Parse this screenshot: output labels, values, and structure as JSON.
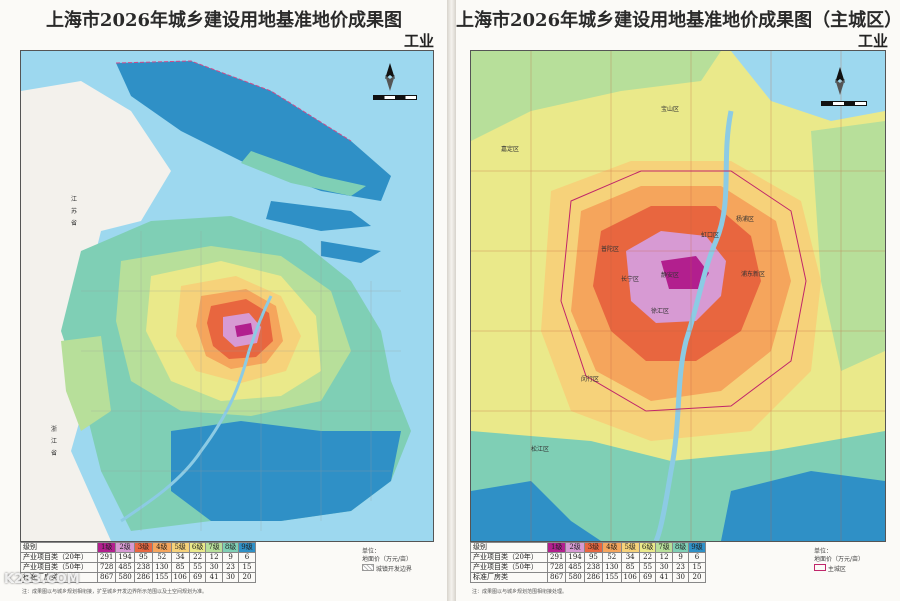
{
  "left": {
    "title": "上海市2026年城乡建设用地基准地价成果图",
    "subtitle": "工业",
    "levels": [
      "1级",
      "2级",
      "3级",
      "4级",
      "5级",
      "6级",
      "7级",
      "8级",
      "9级"
    ],
    "level_row_label": "级别",
    "rows": [
      {
        "label": "产业项目类（20年）",
        "values": [
          "291",
          "194",
          "95",
          "52",
          "34",
          "22",
          "12",
          "9",
          "6"
        ]
      },
      {
        "label": "产业项目类（50年）",
        "values": [
          "728",
          "485",
          "238",
          "130",
          "85",
          "55",
          "30",
          "23",
          "15"
        ]
      },
      {
        "label": "标准厂房类",
        "values": [
          "867",
          "580",
          "286",
          "155",
          "106",
          "69",
          "41",
          "30",
          "20"
        ]
      }
    ],
    "unit_label": "单位：",
    "unit_value": "地面价（万元/亩）",
    "hatch_label": "城镇开发边界",
    "note": "注：成果图以与城乡规划相衔接，扩至城乡开发边界所示范围以及土空间规划为准。",
    "place_labels": [
      "江",
      "苏",
      "省",
      "浙",
      "江",
      "省"
    ]
  },
  "right": {
    "title": "上海市2026年城乡建设用地基准地价成果图（主城区）",
    "subtitle": "工业",
    "levels": [
      "1级",
      "2级",
      "3级",
      "4级",
      "5级",
      "6级",
      "7级",
      "8级",
      "9级"
    ],
    "level_row_label": "级别",
    "rows": [
      {
        "label": "产业项目类（20年）",
        "values": [
          "291",
          "194",
          "95",
          "52",
          "34",
          "22",
          "12",
          "9",
          "6"
        ]
      },
      {
        "label": "产业项目类（50年）",
        "values": [
          "728",
          "485",
          "238",
          "130",
          "85",
          "55",
          "30",
          "23",
          "15"
        ]
      },
      {
        "label": "标准厂房类",
        "values": [
          "867",
          "580",
          "286",
          "155",
          "106",
          "69",
          "41",
          "30",
          "20"
        ]
      }
    ],
    "unit_label": "单位：",
    "unit_value": "地面价（万元/亩）",
    "boundary_label": "主城区",
    "note": "注：成果图以与城乡规划范围相衔接处理。",
    "district_labels": [
      "静安区",
      "长宁区",
      "徐汇区",
      "虹口区",
      "杨浦区",
      "浦东新区",
      "宝山区",
      "普陀区",
      "闵行区",
      "松江区",
      "嘉定区"
    ]
  },
  "level_colors": [
    "#b21f8e",
    "#d79ad3",
    "#e8663f",
    "#f5a55c",
    "#f6d27a",
    "#eae98a",
    "#b7df9a",
    "#7fcfb5",
    "#2f90c6"
  ],
  "watermark": "K233.COM"
}
